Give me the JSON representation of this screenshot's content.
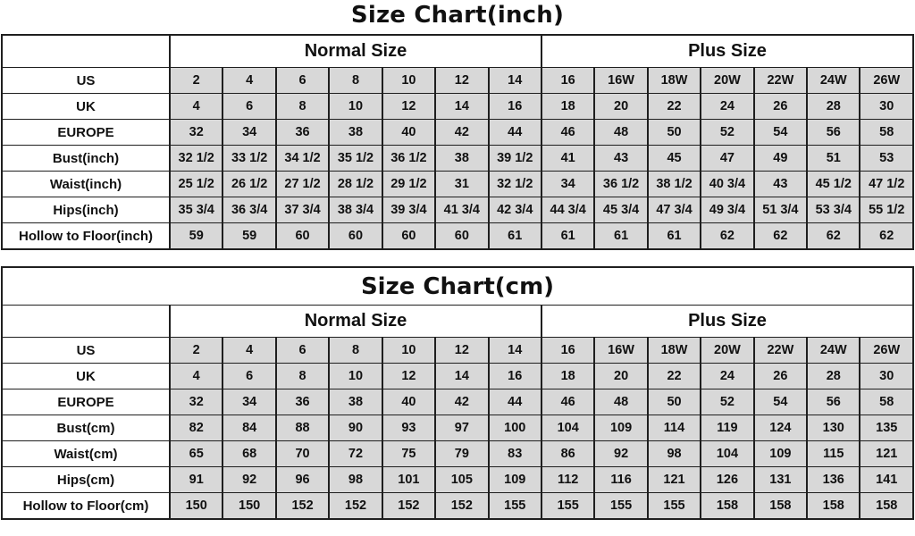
{
  "colors": {
    "cell_fill": "#d8d8d8",
    "grid_line": "#1f1f1f",
    "text": "#111111",
    "background": "#ffffff"
  },
  "sections": [
    {
      "title": "Size Chart(inch)",
      "title_inside_table": false,
      "group_headers": [
        {
          "label": "Normal Size",
          "span": 7
        },
        {
          "label": "Plus Size",
          "span": 7
        }
      ],
      "rows": [
        {
          "label": "US",
          "values": [
            "2",
            "4",
            "6",
            "8",
            "10",
            "12",
            "14",
            "16",
            "16W",
            "18W",
            "20W",
            "22W",
            "24W",
            "26W"
          ]
        },
        {
          "label": "UK",
          "values": [
            "4",
            "6",
            "8",
            "10",
            "12",
            "14",
            "16",
            "18",
            "20",
            "22",
            "24",
            "26",
            "28",
            "30"
          ]
        },
        {
          "label": "EUROPE",
          "values": [
            "32",
            "34",
            "36",
            "38",
            "40",
            "42",
            "44",
            "46",
            "48",
            "50",
            "52",
            "54",
            "56",
            "58"
          ]
        },
        {
          "label": "Bust(inch)",
          "values": [
            "32 1/2",
            "33 1/2",
            "34 1/2",
            "35 1/2",
            "36 1/2",
            "38",
            "39 1/2",
            "41",
            "43",
            "45",
            "47",
            "49",
            "51",
            "53"
          ]
        },
        {
          "label": "Waist(inch)",
          "values": [
            "25 1/2",
            "26 1/2",
            "27 1/2",
            "28 1/2",
            "29 1/2",
            "31",
            "32 1/2",
            "34",
            "36 1/2",
            "38 1/2",
            "40 3/4",
            "43",
            "45 1/2",
            "47 1/2"
          ]
        },
        {
          "label": "Hips(inch)",
          "values": [
            "35 3/4",
            "36 3/4",
            "37 3/4",
            "38 3/4",
            "39 3/4",
            "41 3/4",
            "42 3/4",
            "44 3/4",
            "45 3/4",
            "47 3/4",
            "49 3/4",
            "51 3/4",
            "53 3/4",
            "55 1/2"
          ]
        },
        {
          "label": "Hollow to Floor(inch)",
          "values": [
            "59",
            "59",
            "60",
            "60",
            "60",
            "60",
            "61",
            "61",
            "61",
            "61",
            "62",
            "62",
            "62",
            "62"
          ]
        }
      ]
    },
    {
      "title": "Size Chart(cm)",
      "title_inside_table": true,
      "group_headers": [
        {
          "label": "Normal Size",
          "span": 7
        },
        {
          "label": "Plus Size",
          "span": 7
        }
      ],
      "rows": [
        {
          "label": "US",
          "values": [
            "2",
            "4",
            "6",
            "8",
            "10",
            "12",
            "14",
            "16",
            "16W",
            "18W",
            "20W",
            "22W",
            "24W",
            "26W"
          ]
        },
        {
          "label": "UK",
          "values": [
            "4",
            "6",
            "8",
            "10",
            "12",
            "14",
            "16",
            "18",
            "20",
            "22",
            "24",
            "26",
            "28",
            "30"
          ]
        },
        {
          "label": "EUROPE",
          "values": [
            "32",
            "34",
            "36",
            "38",
            "40",
            "42",
            "44",
            "46",
            "48",
            "50",
            "52",
            "54",
            "56",
            "58"
          ]
        },
        {
          "label": "Bust(cm)",
          "values": [
            "82",
            "84",
            "88",
            "90",
            "93",
            "97",
            "100",
            "104",
            "109",
            "114",
            "119",
            "124",
            "130",
            "135"
          ]
        },
        {
          "label": "Waist(cm)",
          "values": [
            "65",
            "68",
            "70",
            "72",
            "75",
            "79",
            "83",
            "86",
            "92",
            "98",
            "104",
            "109",
            "115",
            "121"
          ]
        },
        {
          "label": "Hips(cm)",
          "values": [
            "91",
            "92",
            "96",
            "98",
            "101",
            "105",
            "109",
            "112",
            "116",
            "121",
            "126",
            "131",
            "136",
            "141"
          ]
        },
        {
          "label": "Hollow to Floor(cm)",
          "values": [
            "150",
            "150",
            "152",
            "152",
            "152",
            "152",
            "155",
            "155",
            "155",
            "155",
            "158",
            "158",
            "158",
            "158"
          ]
        }
      ]
    }
  ]
}
